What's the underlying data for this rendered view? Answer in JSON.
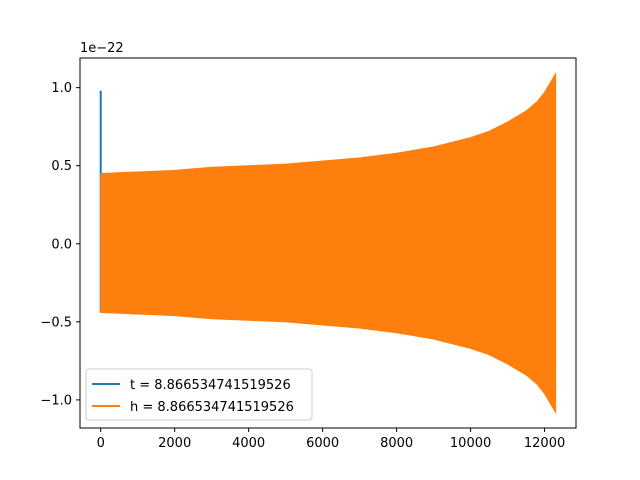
{
  "chart_data": {
    "type": "line",
    "title": "",
    "xlabel": "",
    "ylabel": "",
    "y_scale_label": "1e−22",
    "xlim": [
      -560,
      12850
    ],
    "ylim": [
      -1.18,
      1.19
    ],
    "x_ticks": [
      0,
      2000,
      4000,
      6000,
      8000,
      10000,
      12000
    ],
    "x_tick_labels": [
      "0",
      "2000",
      "4000",
      "6000",
      "8000",
      "10000",
      "12000"
    ],
    "y_ticks": [
      1.0,
      0.5,
      0.0,
      -0.5,
      -1.0
    ],
    "y_tick_labels": [
      "1.0",
      "0.5",
      "0.0",
      "−0.5",
      "−1.0"
    ],
    "grid": false,
    "legend_position": "lower-left",
    "series": [
      {
        "name": "t = 8.866534741519526",
        "color": "#1f77b4",
        "description_type": "spike",
        "x": [
          0,
          0
        ],
        "y": [
          -0.44,
          0.98
        ]
      },
      {
        "name": "h = 8.866534741519526",
        "color": "#ff7f0e",
        "description_type": "chirp-envelope",
        "x_start": 0,
        "x_end": 12300,
        "envelope_x": [
          0,
          1000,
          2000,
          3000,
          4000,
          5000,
          6000,
          7000,
          8000,
          9000,
          10000,
          10500,
          11000,
          11500,
          11800,
          12000,
          12150,
          12250,
          12300
        ],
        "envelope_upper": [
          0.45,
          0.46,
          0.47,
          0.49,
          0.5,
          0.51,
          0.53,
          0.55,
          0.58,
          0.62,
          0.68,
          0.72,
          0.78,
          0.85,
          0.91,
          0.97,
          1.03,
          1.07,
          1.09
        ],
        "envelope_lower": [
          -0.44,
          -0.45,
          -0.46,
          -0.48,
          -0.49,
          -0.5,
          -0.52,
          -0.54,
          -0.57,
          -0.61,
          -0.67,
          -0.71,
          -0.77,
          -0.84,
          -0.9,
          -0.96,
          -1.02,
          -1.06,
          -1.08
        ]
      }
    ]
  }
}
